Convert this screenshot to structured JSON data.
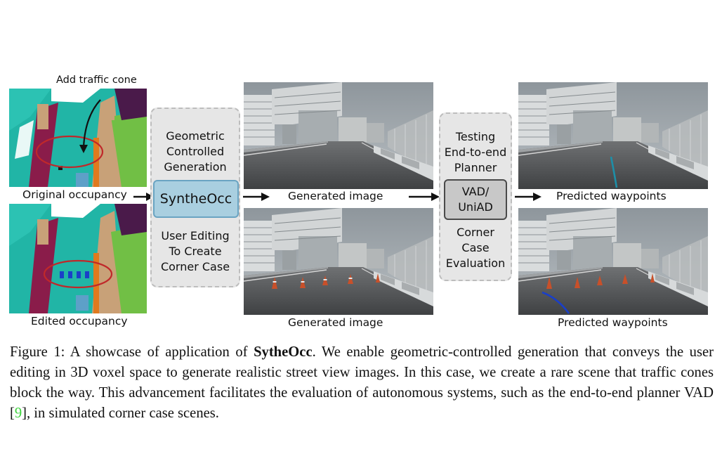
{
  "figure": {
    "annotation_add_cone": "Add traffic cone",
    "label_original_occupancy": "Original occupancy",
    "label_edited_occupancy": "Edited occupancy",
    "box1": {
      "line1": "Geometric",
      "line2": "Controlled",
      "line3": "Generation",
      "core": "SyntheOcc",
      "line4": "User Editing",
      "line5": "To Create",
      "line6": "Corner Case"
    },
    "label_generated_top": "Generated image",
    "label_generated_bottom": "Generated image",
    "box2": {
      "line1": "Testing",
      "line2": "End-to-end",
      "line3": "Planner",
      "core1": "VAD/",
      "core2": "UniAD",
      "line4": "Corner",
      "line5": "Case",
      "line6": "Evaluation"
    },
    "label_pred_top": "Predicted waypoints",
    "label_pred_bottom": "Predicted waypoints"
  },
  "caption": {
    "prefix": "Figure 1: A showcase of application of ",
    "bold": "SytheOcc",
    "mid": ". We enable geometric-controlled generation that conveys the user editing in 3D voxel space to generate realistic street view images. In this case, we create a rare scene that traffic cones block the way. This advancement facilitates the evaluation of autonomous systems, such as the end-to-end planner VAD [",
    "cite": "9",
    "suffix": "], in simulated corner case scenes."
  },
  "colors": {
    "occ_teal": "#21b5a6",
    "occ_maroon": "#8a1c4a",
    "occ_tan": "#c8a178",
    "occ_green": "#71bf45",
    "occ_purple": "#4a1a4a",
    "ellipse_red": "#c0282a",
    "synth_fill": "#a9cfe0",
    "vad_fill": "#c8c8c8",
    "cone_orange": "#c8502a",
    "waypoint_teal": "#1d8fa8",
    "waypoint_blue": "#1a3fc8",
    "cite_green": "#3cd23c"
  }
}
